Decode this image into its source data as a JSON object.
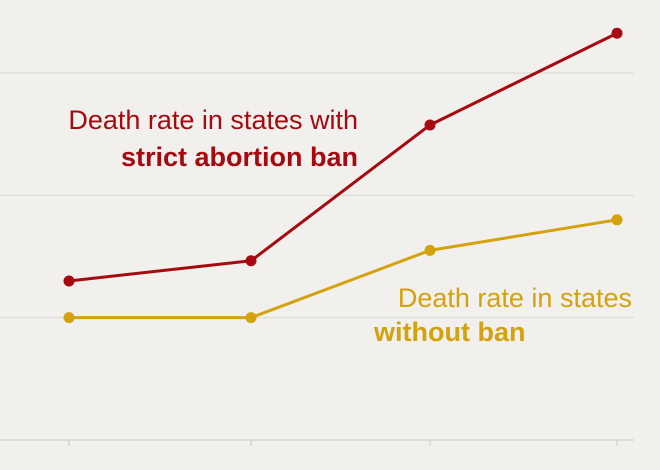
{
  "chart_data": {
    "type": "line",
    "title": "",
    "xlabel": "",
    "ylabel": "",
    "x": [
      1,
      2,
      3,
      4
    ],
    "ylim": [
      0,
      6
    ],
    "y_gridlines": [
      0,
      2,
      4,
      6
    ],
    "grid": true,
    "legend": "direct labels on the chart",
    "series": [
      {
        "key": "ban",
        "label_line1": "Death rate in states with",
        "label_line2": "strict abortion ban",
        "color": "#a6090f",
        "values": [
          2.6,
          2.93,
          5.15,
          6.65
        ]
      },
      {
        "key": "noban",
        "label_line1": "Death rate in states",
        "label_line2": "without ban",
        "color": "#d4a20e",
        "values": [
          2.0,
          2.0,
          3.1,
          3.6
        ]
      }
    ]
  }
}
